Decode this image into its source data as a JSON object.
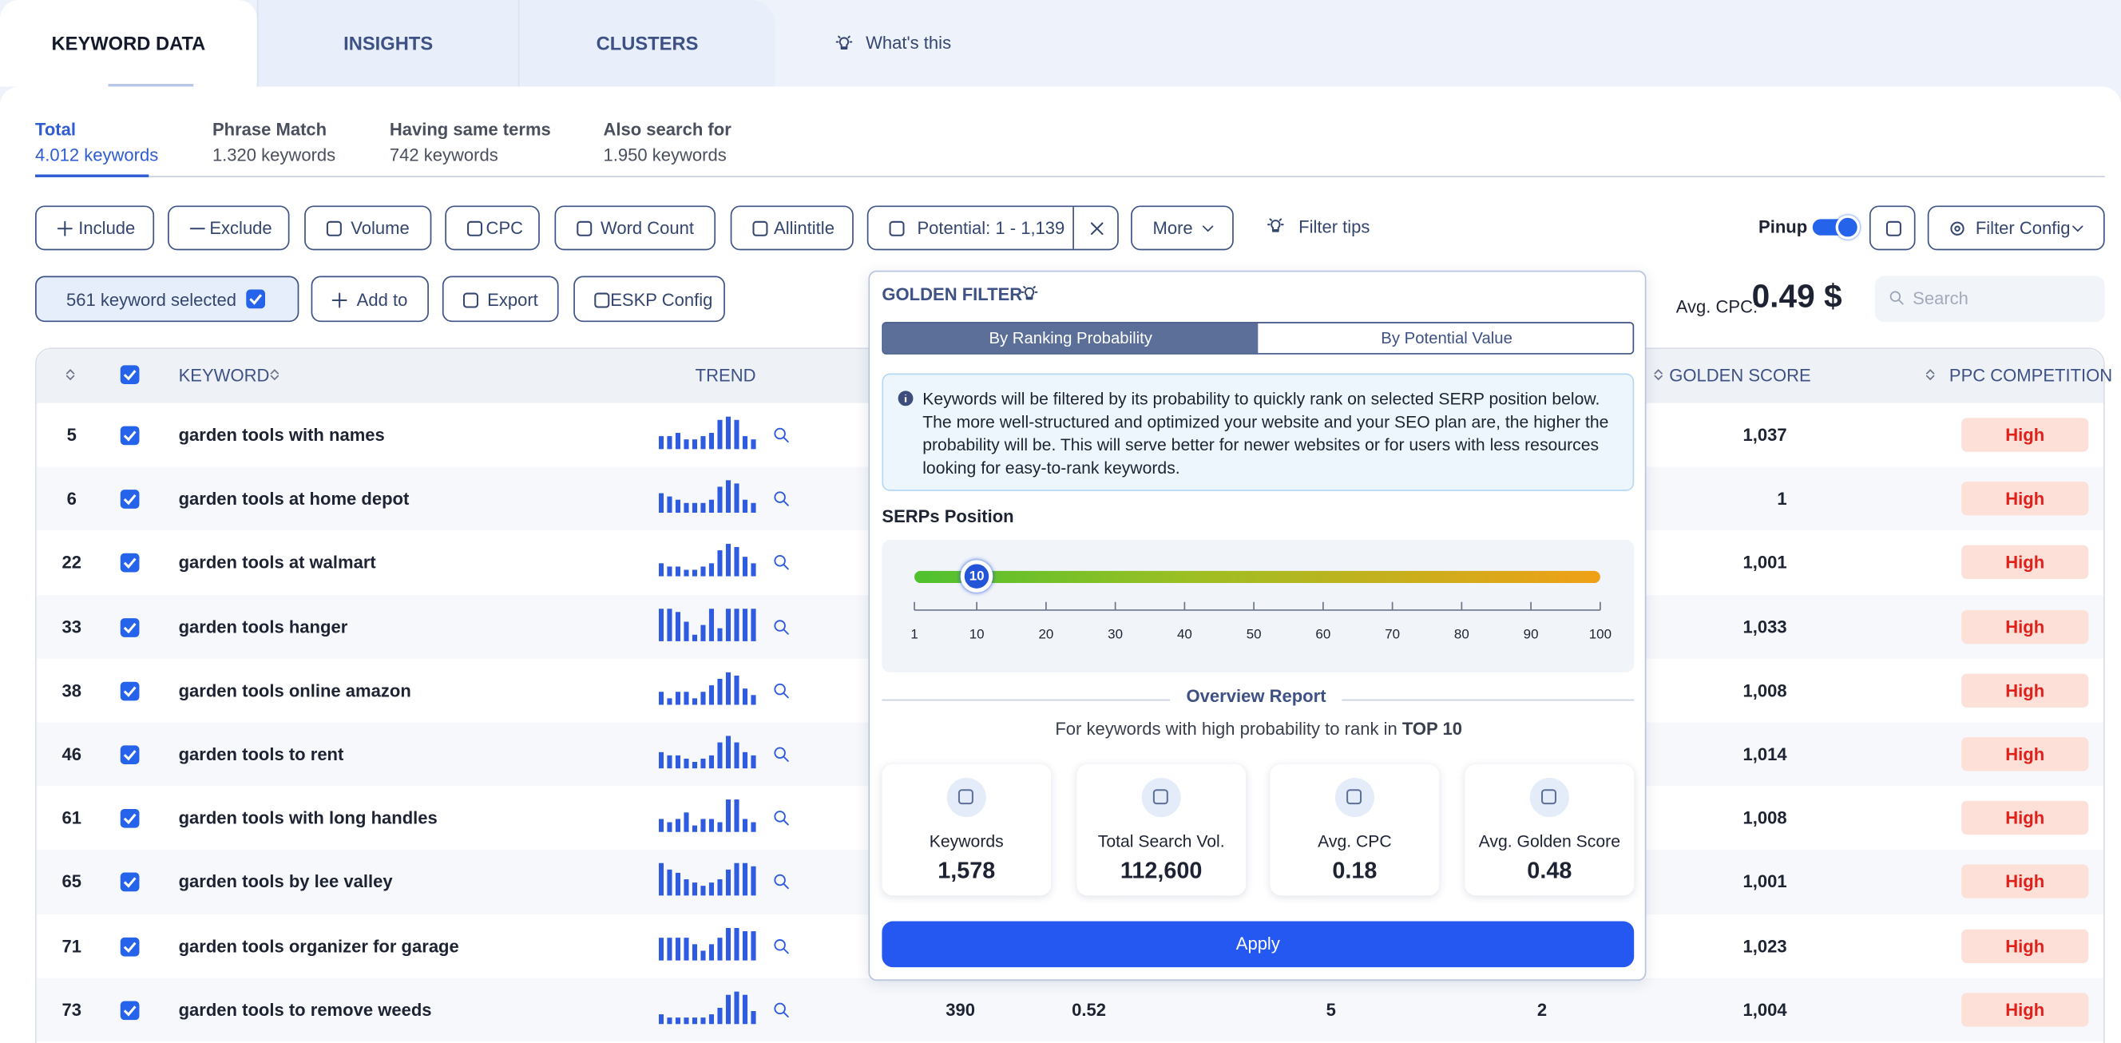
{
  "tabs": [
    "KEYWORD DATA",
    "INSIGHTS",
    "CLUSTERS"
  ],
  "whats_this": "What's this",
  "subtabs": [
    {
      "title": "Total",
      "count": "4.012 keywords"
    },
    {
      "title": "Phrase Match",
      "count": "1.320 keywords"
    },
    {
      "title": "Having same terms",
      "count": "742 keywords"
    },
    {
      "title": "Also search for",
      "count": "1.950 keywords"
    }
  ],
  "filters": [
    "Include",
    "Exclude",
    "Volume",
    "CPC",
    "Word Count",
    "Allintitle",
    "Potential: 1 - 1,139",
    "More"
  ],
  "filter_tips": "Filter tips",
  "pinup": "Pinup",
  "filter_config": "Filter Config",
  "selected": "561 keyword selected",
  "actions": [
    "Add to",
    "Export",
    "ESKP Config"
  ],
  "avg_cpc": {
    "label": "Avg. CPC:",
    "value": "0.49 $"
  },
  "search": "Search",
  "table": {
    "headers": {
      "keyword": "KEYWORD",
      "trend": "TREND",
      "golden": "GOLDEN SCORE",
      "ppc": "PPC COMPETITION"
    },
    "rows": [
      {
        "id": "5",
        "keyword": "garden tools with names",
        "trend": [
          4,
          4,
          5,
          3,
          3,
          4,
          5,
          9,
          10,
          9,
          4,
          3
        ],
        "golden": "1,037",
        "ppc": "High"
      },
      {
        "id": "6",
        "keyword": "garden tools at home depot",
        "trend": [
          6,
          5,
          4,
          3,
          3,
          3,
          4,
          8,
          10,
          9,
          4,
          3
        ],
        "golden": "1",
        "ppc": "High"
      },
      {
        "id": "22",
        "keyword": "garden tools at walmart",
        "trend": [
          4,
          3,
          3,
          2,
          2,
          3,
          4,
          8,
          10,
          9,
          6,
          4
        ],
        "golden": "1,001",
        "ppc": "High"
      },
      {
        "id": "33",
        "keyword": "garden tools hanger",
        "trend": [
          10,
          10,
          9,
          6,
          2,
          5,
          10,
          4,
          10,
          10,
          10,
          10
        ],
        "golden": "1,033",
        "ppc": "High"
      },
      {
        "id": "38",
        "keyword": "garden tools online amazon",
        "trend": [
          4,
          2,
          4,
          4,
          2,
          4,
          6,
          8,
          10,
          9,
          5,
          3
        ],
        "golden": "1,008",
        "ppc": "High"
      },
      {
        "id": "46",
        "keyword": "garden tools to rent",
        "trend": [
          5,
          4,
          4,
          3,
          2,
          3,
          4,
          8,
          10,
          8,
          5,
          4
        ],
        "golden": "1,014",
        "ppc": "High"
      },
      {
        "id": "61",
        "keyword": "garden tools with long handles",
        "trend": [
          4,
          3,
          4,
          6,
          2,
          4,
          4,
          3,
          10,
          10,
          4,
          3
        ],
        "golden": "1,008",
        "ppc": "High"
      },
      {
        "id": "65",
        "keyword": "garden tools by lee valley",
        "trend": [
          10,
          8,
          7,
          5,
          4,
          3,
          4,
          5,
          8,
          10,
          10,
          9
        ],
        "golden": "1,001",
        "ppc": "High"
      },
      {
        "id": "71",
        "keyword": "garden tools organizer for garage",
        "trend": [
          7,
          7,
          7,
          7,
          5,
          3,
          5,
          7,
          10,
          10,
          9,
          9
        ],
        "golden": "1,023",
        "ppc": "High"
      },
      {
        "id": "73",
        "keyword": "garden tools to remove weeds",
        "trend": [
          3,
          2,
          2,
          2,
          2,
          2,
          3,
          5,
          9,
          10,
          9,
          4
        ],
        "golden": "1,004",
        "ppc": "High",
        "extra": [
          "390",
          "0.52",
          "5",
          "2"
        ]
      }
    ]
  },
  "popup": {
    "title": "GOLDEN FILTER",
    "modes": [
      "By Ranking Probability",
      "By Potential Value"
    ],
    "info": "Keywords will be filtered by its probability to quickly rank on selected SERP position below. The more well-structured and optimized your website and your SEO plan are, the higher the probability will be. This will serve better for newer websites or for users with less resources looking for easy-to-rank keywords.",
    "serps_label": "SERPs Position",
    "slider": {
      "value": 10,
      "range": [
        1,
        100
      ],
      "ticks": [
        1,
        10,
        20,
        30,
        40,
        50,
        60,
        70,
        80,
        90,
        100
      ]
    },
    "overview": "Overview Report",
    "overview_text": "For keywords with high probability to rank in",
    "overview_top": "TOP 10",
    "stats": [
      {
        "label": "Keywords",
        "value": "1,578"
      },
      {
        "label": "Total Search Vol.",
        "value": "112,600"
      },
      {
        "label": "Avg. CPC",
        "value": "0.18"
      },
      {
        "label": "Avg. Golden Score",
        "value": "0.48"
      }
    ],
    "apply": "Apply"
  }
}
